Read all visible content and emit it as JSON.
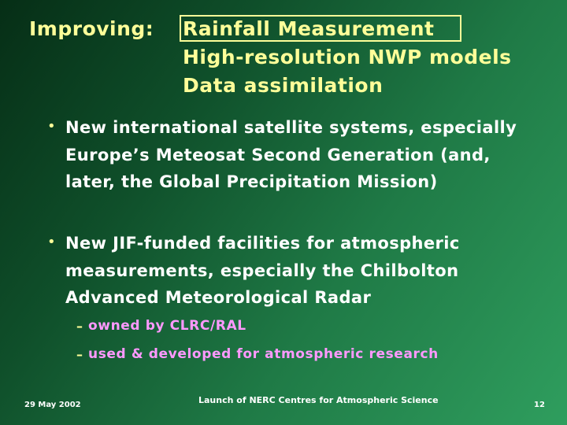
{
  "title": {
    "lead": "Improving:",
    "topics": [
      "Rainfall Measurement",
      "High-resolution NWP models",
      "Data assimilation"
    ]
  },
  "bullets": [
    {
      "marker": "•",
      "text": "New international satellite systems, especially Europe’s Meteosat Second Generation (and, later, the Global Precipitation Mission)"
    },
    {
      "marker": "•",
      "text": "New JIF-funded facilities for atmospheric measurements, especially the Chilbolton Advanced Meteorological Radar",
      "subitems": [
        {
          "marker": "–",
          "text": "owned by CLRC/RAL"
        },
        {
          "marker": "–",
          "text": "used & developed for atmospheric research"
        }
      ]
    }
  ],
  "footer": {
    "date": "29 May 2002",
    "center": "Launch of NERC Centres for Atmospheric Science",
    "page": "12"
  },
  "colors": {
    "title": "#ffff99",
    "body": "#ffffff",
    "subitems": "#ff99ff"
  }
}
